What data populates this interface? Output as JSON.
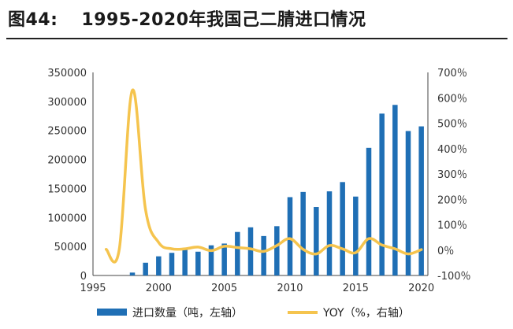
{
  "figure": {
    "label": "图44:",
    "title": "1995-2020年我国己二腈进口情况"
  },
  "chart_data": {
    "type": "bar",
    "x": [
      1995,
      1996,
      1997,
      1998,
      1999,
      2000,
      2001,
      2002,
      2003,
      2004,
      2005,
      2006,
      2007,
      2008,
      2009,
      2010,
      2011,
      2012,
      2013,
      2014,
      2015,
      2016,
      2017,
      2018,
      2019,
      2020
    ],
    "series": [
      {
        "name": "进口数量（吨，左轴）",
        "type": "bar",
        "axis": "left",
        "color": "#1f6fb5",
        "values": [
          null,
          null,
          null,
          5000,
          22000,
          33000,
          39000,
          47000,
          41000,
          52000,
          55000,
          75000,
          83000,
          68000,
          85000,
          135000,
          144000,
          118000,
          145000,
          161000,
          136000,
          220000,
          279000,
          294000,
          249000,
          257000
        ]
      },
      {
        "name": "YOY（%，右轴）",
        "type": "line",
        "axis": "right",
        "color": "#f5c44e",
        "values": [
          null,
          0.03,
          0.03,
          6.3,
          1.6,
          0.3,
          0.05,
          0.05,
          0.12,
          -0.02,
          0.15,
          0.1,
          0.05,
          -0.05,
          0.18,
          0.45,
          0.03,
          -0.15,
          0.18,
          0.05,
          -0.1,
          0.45,
          0.2,
          0.05,
          -0.15,
          0.02
        ]
      }
    ],
    "x_ticks": [
      "1995",
      "2000",
      "2005",
      "2010",
      "2015",
      "2020"
    ],
    "y_left": {
      "ylim": [
        0,
        350000
      ],
      "ticks": [
        "0",
        "50000",
        "100000",
        "150000",
        "200000",
        "250000",
        "300000",
        "350000"
      ]
    },
    "y_right": {
      "ylim": [
        -1.0,
        7.0
      ],
      "ticks": [
        "-100％",
        "0％",
        "100％",
        "200％",
        "300％",
        "400％",
        "500％",
        "600％",
        "700％"
      ]
    },
    "legend": {
      "position": "bottom"
    },
    "grid": false
  }
}
